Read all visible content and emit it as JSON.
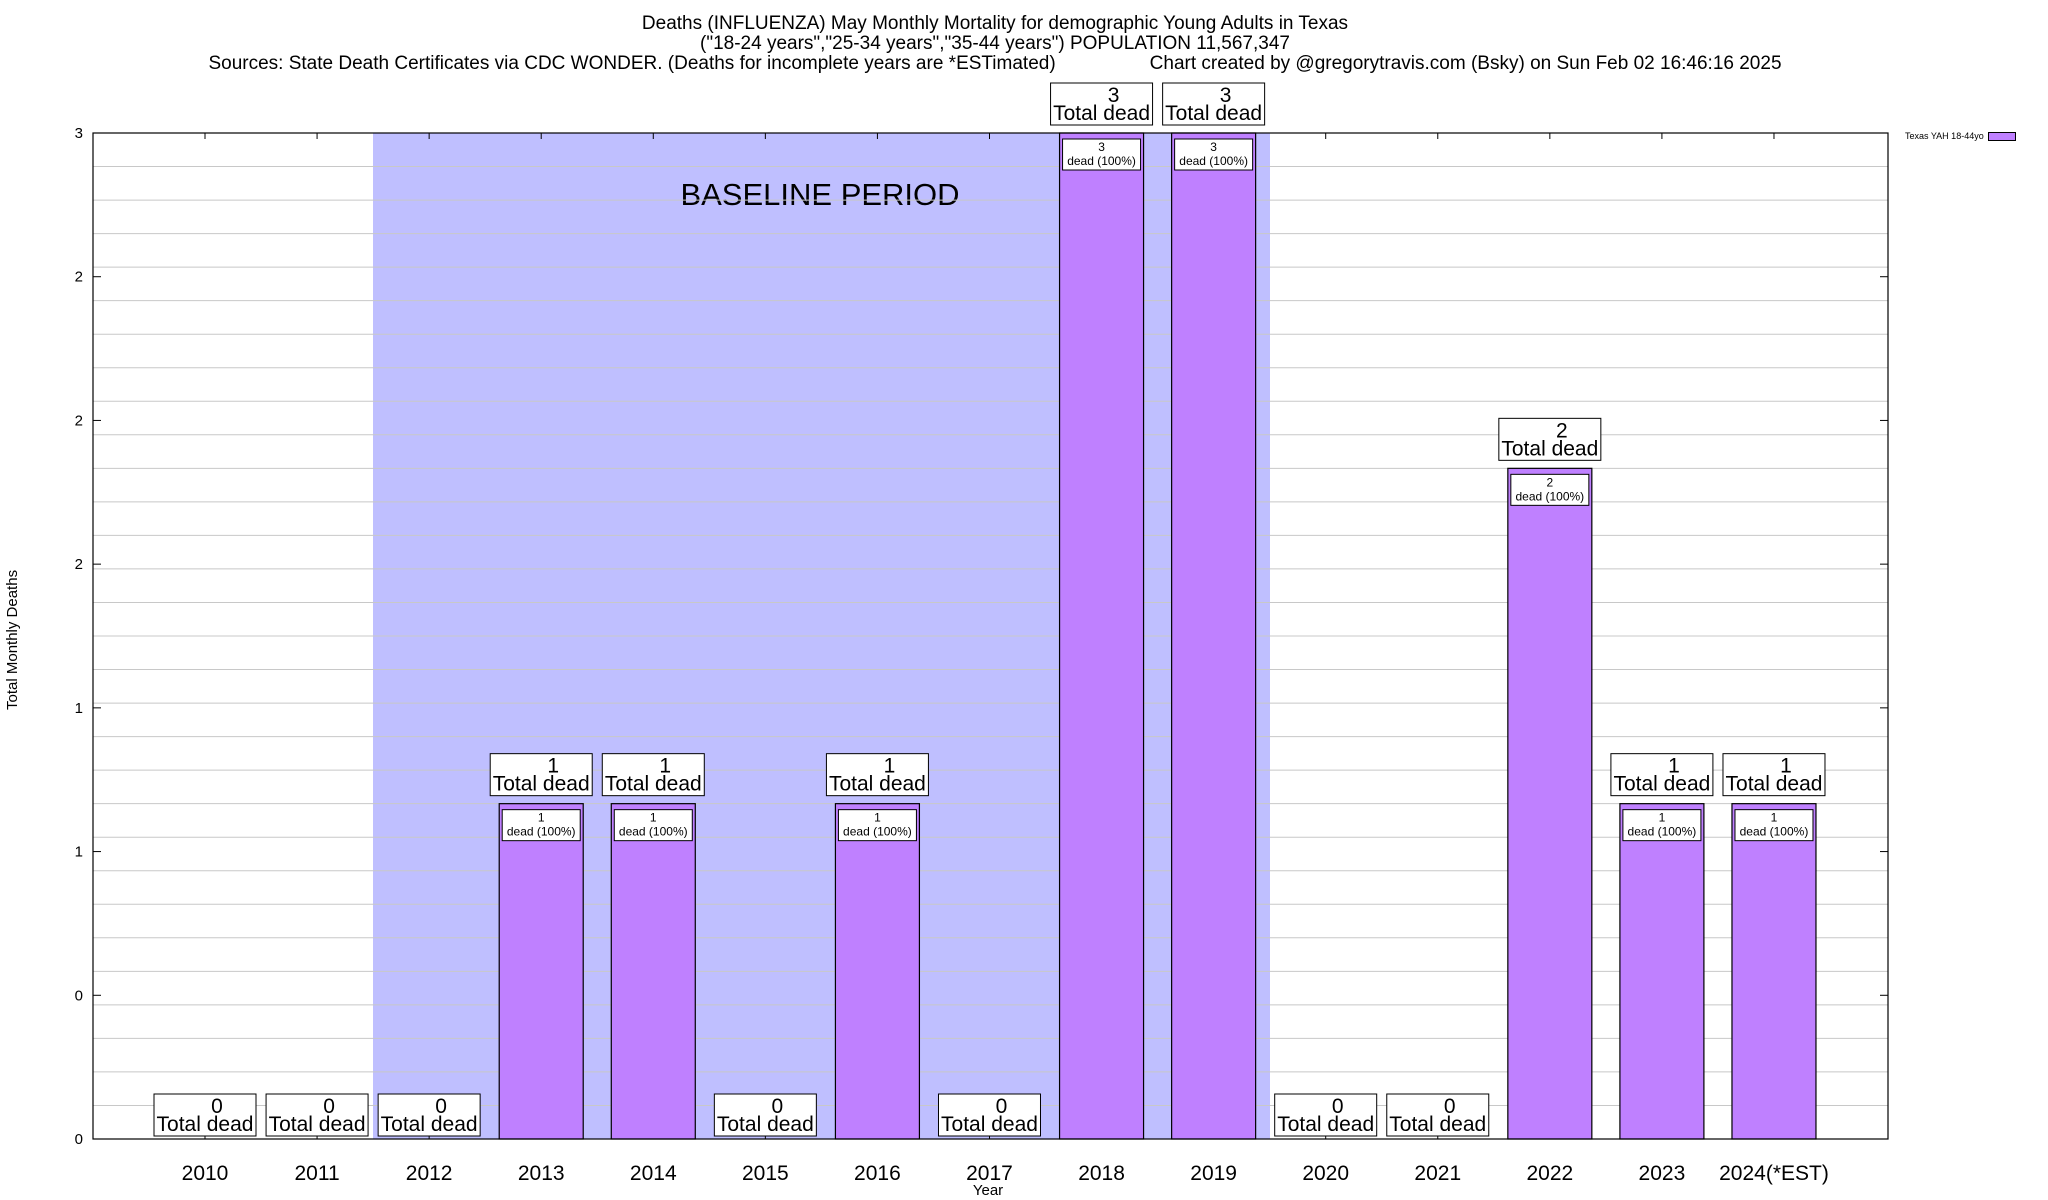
{
  "titles": {
    "line1": "Deaths (INFLUENZA) May Monthly Mortality for demographic Young Adults in Texas",
    "line2": "(\"18-24 years\",\"25-34 years\",\"35-44 years\") POPULATION 11,567,347",
    "line3_source": "Sources: State Death Certificates via CDC WONDER. (Deaths for incomplete years are *ESTimated)",
    "line3_credit": "Chart created by @gregorytravis.com (Bsky) on Sun Feb 02 16:46:16 2025"
  },
  "chart_data": {
    "type": "bar",
    "title": "Deaths (INFLUENZA) May Monthly Mortality for demographic Young Adults in Texas",
    "xlabel": "Year",
    "ylabel": "Total Monthly Deaths",
    "ylim": [
      0,
      3
    ],
    "y_tick_labels": [
      "0",
      "0",
      "1",
      "1",
      "2",
      "2",
      "2",
      "3"
    ],
    "grid": true,
    "legend_position": "top-right",
    "categories": [
      "2010",
      "2011",
      "2012",
      "2013",
      "2014",
      "2015",
      "2016",
      "2017",
      "2018",
      "2019",
      "2020",
      "2021",
      "2022",
      "2023",
      "2024(*EST)"
    ],
    "series": [
      {
        "name": "Texas YAH 18-44yo",
        "color": "#bf80ff",
        "values": [
          0,
          0,
          0,
          1,
          1,
          0,
          1,
          0,
          3,
          3,
          0,
          0,
          2,
          1,
          1
        ]
      }
    ],
    "total_label_suffix": "Total dead",
    "inner_label_suffix": "dead (100%)",
    "baseline": {
      "label": "BASELINE PERIOD",
      "start": "2012",
      "end": "2019",
      "color": "#bfbfff"
    }
  }
}
